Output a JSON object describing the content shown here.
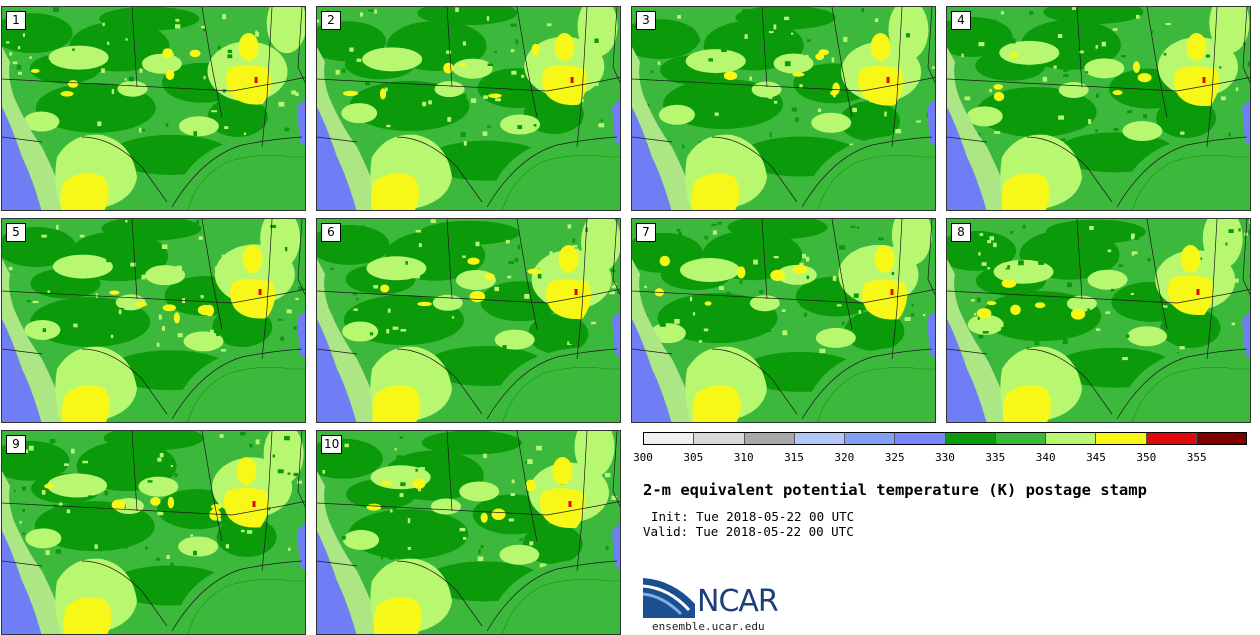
{
  "panels": [
    {
      "label": "1",
      "variant": 0
    },
    {
      "label": "2",
      "variant": 1
    },
    {
      "label": "3",
      "variant": 2
    },
    {
      "label": "4",
      "variant": 3
    },
    {
      "label": "5",
      "variant": 4
    },
    {
      "label": "6",
      "variant": 5
    },
    {
      "label": "7",
      "variant": 6
    },
    {
      "label": "8",
      "variant": 7
    },
    {
      "label": "9",
      "variant": 8
    },
    {
      "label": "10",
      "variant": 9
    }
  ],
  "colorbar": {
    "colors": [
      "#f0f0f0",
      "#d8d8d8",
      "#a8a8a8",
      "#b4c8f8",
      "#82a0f8",
      "#7a85f8",
      "#0a9a0a",
      "#3cb83c",
      "#b8f870",
      "#f8f818",
      "#e00808",
      "#800000"
    ],
    "ticks": [
      "300",
      "305",
      "310",
      "315",
      "320",
      "325",
      "330",
      "335",
      "340",
      "345",
      "350",
      "355"
    ]
  },
  "map_colors": {
    "ocean": "#6f7ef5",
    "dark_green": "#0a9a0a",
    "green": "#3cb83c",
    "light_green": "#b8f870",
    "yellow": "#f8f818",
    "red": "#e00808",
    "border": "#1a1a1a"
  },
  "title": "2-m equivalent potential temperature (K) postage stamp",
  "init": "Init: Tue 2018-05-22 00 UTC",
  "valid": "Valid: Tue 2018-05-22 00 UTC",
  "logo_text": "NCAR",
  "url": "ensemble.ucar.edu"
}
